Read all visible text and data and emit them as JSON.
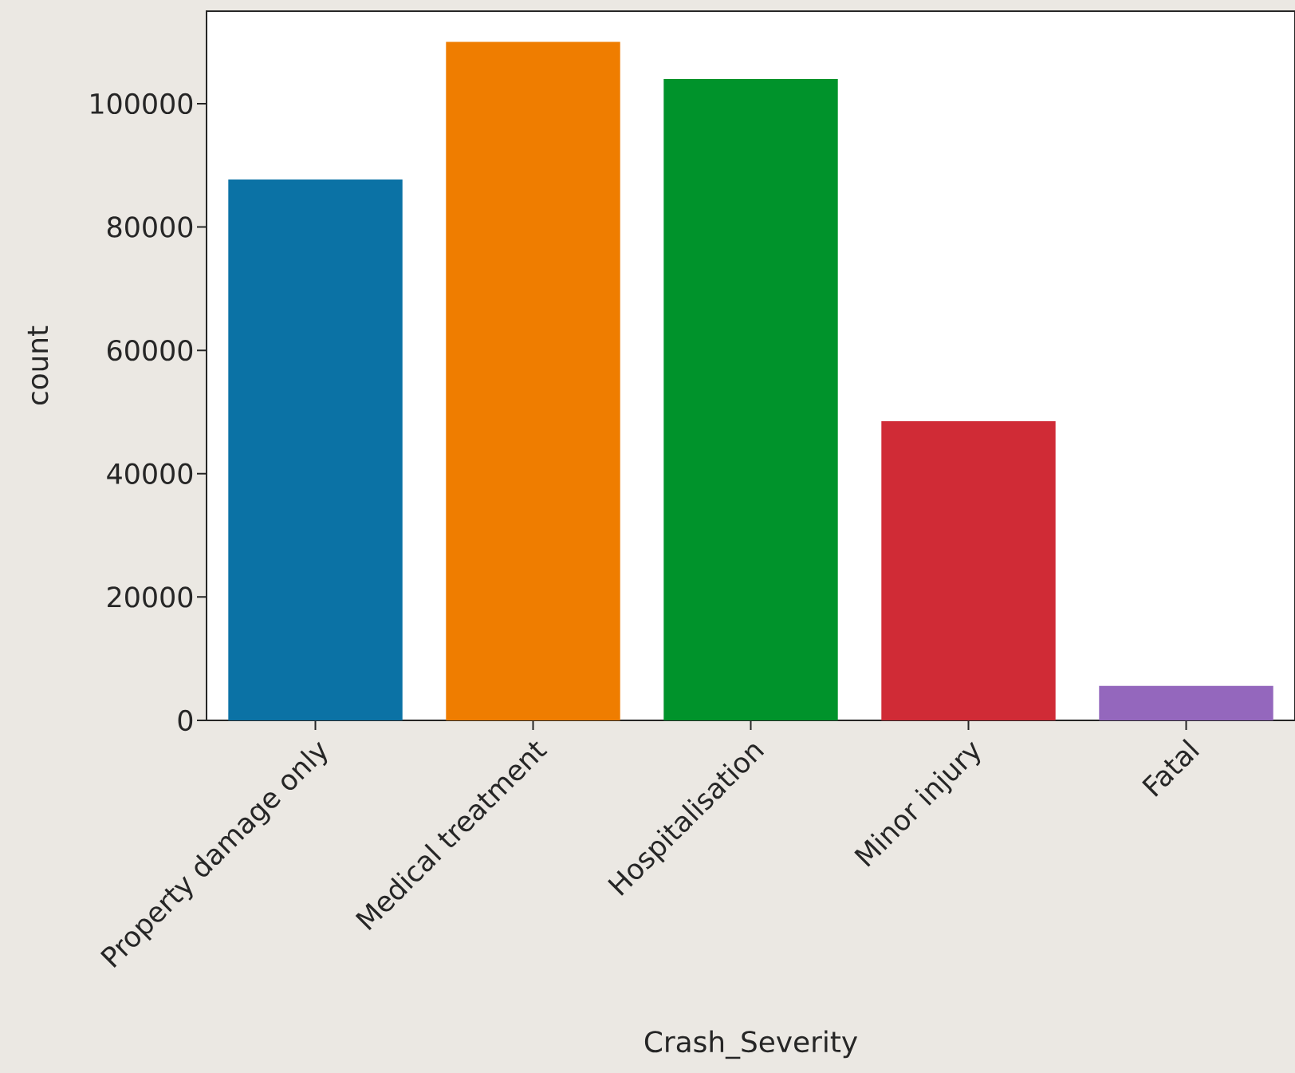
{
  "chart_data": {
    "type": "bar",
    "xlabel": "Crash_Severity",
    "ylabel": "count",
    "categories": [
      "Property damage only",
      "Medical treatment",
      "Hospitalisation",
      "Minor injury",
      "Fatal"
    ],
    "values": [
      87700,
      110000,
      104000,
      48500,
      5600
    ],
    "colors": [
      "#0b72a5",
      "#ef7d00",
      "#00932b",
      "#d02b36",
      "#9467bd"
    ],
    "ylim": [
      0,
      115000
    ],
    "yticks": [
      0,
      20000,
      40000,
      60000,
      80000,
      100000
    ]
  }
}
